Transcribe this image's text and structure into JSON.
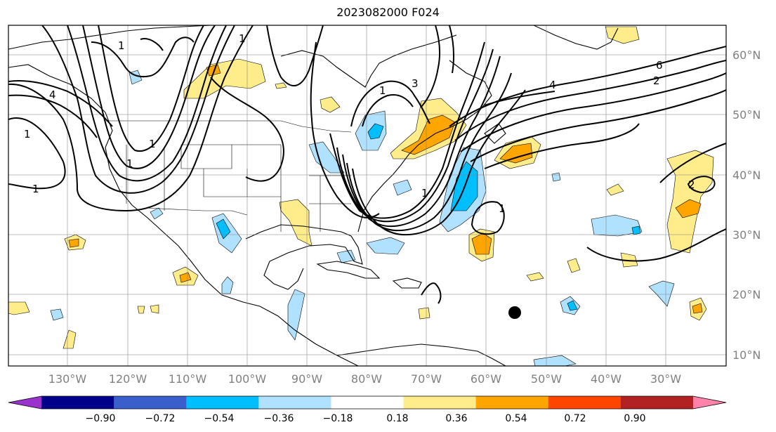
{
  "map": {
    "title": "2023082000 F024",
    "lon_ticks": [
      "130°W",
      "120°W",
      "110°W",
      "100°W",
      "90°W",
      "80°W",
      "70°W",
      "60°W",
      "50°W",
      "40°W",
      "30°W"
    ],
    "lat_ticks": [
      "60°N",
      "50°N",
      "40°N",
      "30°N",
      "20°N",
      "10°N"
    ],
    "contour_labels": [
      "1",
      "4",
      "1",
      "1",
      "1",
      "1",
      "1",
      "3",
      "6",
      "4",
      "2",
      "1",
      "1",
      "2",
      "1"
    ],
    "marker": "storm-center-dot"
  },
  "colorbar": {
    "colors": [
      "#9933cc",
      "#00008b",
      "#3a5fcd",
      "#00bfff",
      "#b0e2ff",
      "#ffffff",
      "#ffec8b",
      "#ffa500",
      "#ff4500",
      "#b22222",
      "#ff82ab"
    ],
    "tick_labels": [
      "−0.90",
      "−0.72",
      "−0.54",
      "−0.36",
      "−0.18",
      "0.18",
      "0.36",
      "0.54",
      "0.72",
      "0.90"
    ]
  }
}
